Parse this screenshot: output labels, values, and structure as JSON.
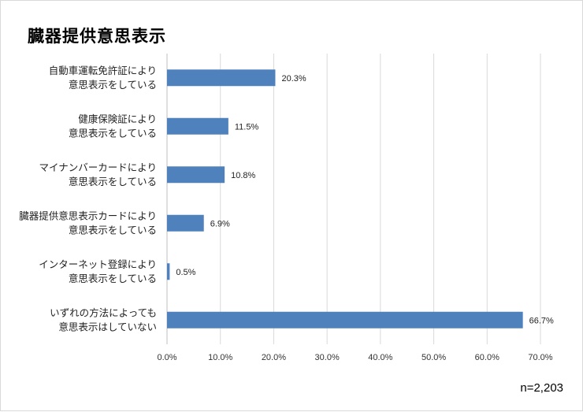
{
  "chart_data": {
    "type": "bar",
    "orientation": "horizontal",
    "title": "臓器提供意思表示",
    "categories": [
      [
        "自動車運転免許証により",
        "意思表示をしている"
      ],
      [
        "健康保険証により",
        "意思表示をしている"
      ],
      [
        "マイナンバーカードにより",
        "意思表示をしている"
      ],
      [
        "臓器提供意思表示カードにより",
        "意思表示をしている"
      ],
      [
        "インターネット登録により",
        "意思表示をしている"
      ],
      [
        "いずれの方法によっても",
        "意思表示はしていない"
      ]
    ],
    "values": [
      20.3,
      11.5,
      10.8,
      6.9,
      0.5,
      66.7
    ],
    "data_labels": [
      "20.3%",
      "11.5%",
      "10.8%",
      "6.9%",
      "0.5%",
      "66.7%"
    ],
    "xlim": [
      0,
      70
    ],
    "xticks": [
      "0.0%",
      "10.0%",
      "20.0%",
      "30.0%",
      "40.0%",
      "50.0%",
      "60.0%",
      "70.0%"
    ],
    "grid": true,
    "bar_color": "#4f81bd",
    "note": "n=2,203"
  }
}
